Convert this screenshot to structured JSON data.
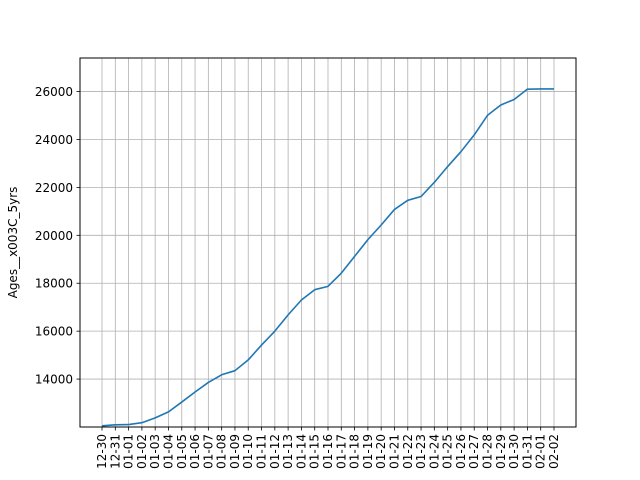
{
  "chart_data": {
    "type": "line",
    "title": "",
    "xlabel": "",
    "ylabel": "Ages__x003C_5yrs",
    "grid": true,
    "legend": "none",
    "line_color": "#1f77b4",
    "grid_color": "#b0b0b0",
    "ylim": [
      12000,
      27400
    ],
    "yticks": [
      14000,
      16000,
      18000,
      20000,
      22000,
      24000,
      26000
    ],
    "x": [
      "12-30",
      "12-31",
      "01-01",
      "01-02",
      "01-03",
      "01-04",
      "01-05",
      "01-06",
      "01-07",
      "01-08",
      "01-09",
      "01-10",
      "01-11",
      "01-12",
      "01-13",
      "01-14",
      "01-15",
      "01-16",
      "01-17",
      "01-18",
      "01-19",
      "01-20",
      "01-21",
      "01-22",
      "01-23",
      "01-24",
      "01-25",
      "01-26",
      "01-27",
      "01-28",
      "01-29",
      "01-30",
      "01-31",
      "02-01",
      "02-02"
    ],
    "series": [
      {
        "name": "",
        "values": [
          12050,
          12090,
          12100,
          12180,
          12380,
          12630,
          13040,
          13460,
          13860,
          14180,
          14350,
          14800,
          15420,
          16000,
          16680,
          17300,
          17730,
          17870,
          18420,
          19120,
          19820,
          20430,
          21080,
          21460,
          21620,
          22210,
          22870,
          23490,
          24190,
          25010,
          25440,
          25670,
          26100,
          26110,
          26110
        ]
      }
    ]
  }
}
